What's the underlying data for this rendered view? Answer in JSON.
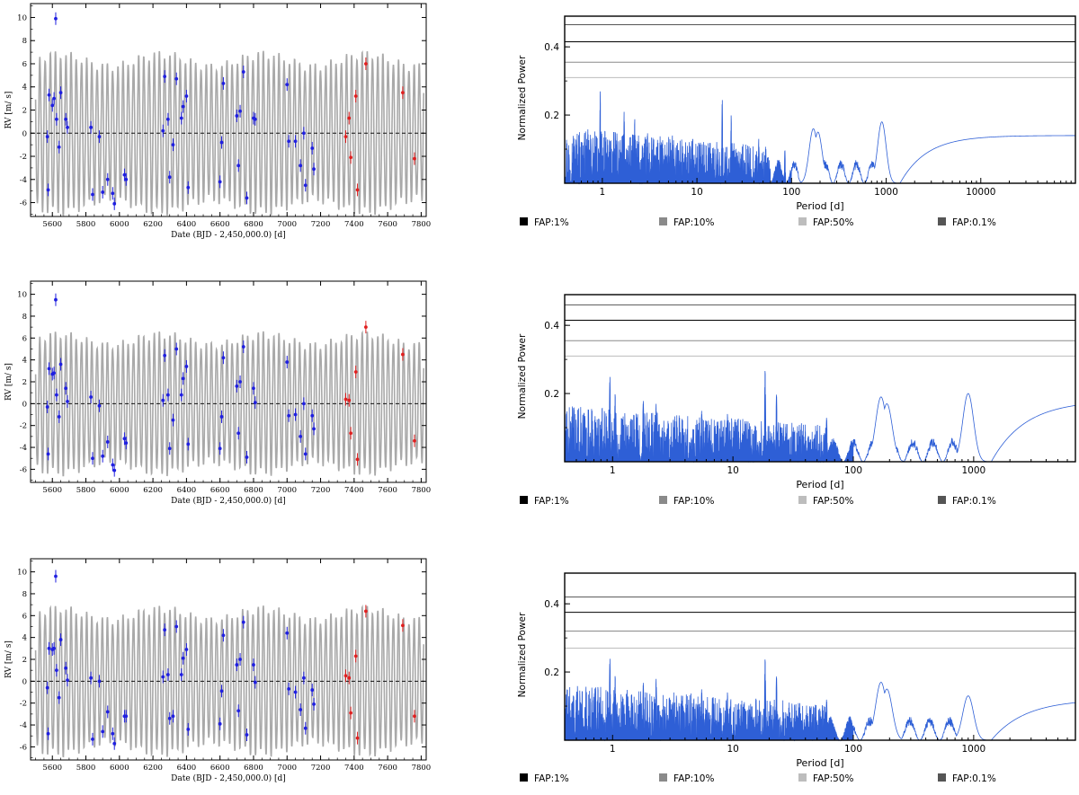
{
  "figure": {
    "rv_xlabel": "Date (BJD - 2,450,000.0) [d]",
    "rv_ylabel": "RV [m/ s]",
    "rv_xticks": [
      5600,
      5800,
      6000,
      6200,
      6400,
      6600,
      6800,
      7000,
      7200,
      7400,
      7600,
      7800
    ],
    "rv_yticks": [
      -6,
      -4,
      -2,
      0,
      2,
      4,
      6,
      8,
      10
    ],
    "pg_xlabel": "Period [d]",
    "pg_ylabel": "Normalized Power",
    "pg_yticks": [
      0.2,
      0.4
    ],
    "legend": [
      {
        "label": "FAP:1%",
        "color": "#000000"
      },
      {
        "label": "FAP:10%",
        "color": "#8a8a8a"
      },
      {
        "label": "FAP:50%",
        "color": "#bdbdbd"
      },
      {
        "label": "FAP:0.1%",
        "color": "#555555"
      }
    ],
    "colors": {
      "data_blue": "#1f1fe0",
      "data_red": "#e01f1f",
      "model_gray": "#a9a9a9",
      "periodogram": "#2e5fd6"
    }
  },
  "chart_data": [
    {
      "type": "scatter",
      "title": "",
      "xlabel": "Date (BJD - 2,450,000.0) [d]",
      "ylabel": "RV [m/ s]",
      "xlim": [
        5470,
        7830
      ],
      "ylim": [
        -7.2,
        11.2
      ],
      "model": {
        "name": "model",
        "amplitude": 6.8,
        "period_days": 31.0
      },
      "series": [
        {
          "name": "instrument-1",
          "color": "#1f1fe0",
          "points": [
            [
              5570,
              -0.3
            ],
            [
              5580,
              3.3
            ],
            [
              5575,
              -4.9
            ],
            [
              5600,
              2.4
            ],
            [
              5610,
              3.0
            ],
            [
              5620,
              9.9
            ],
            [
              5625,
              1.2
            ],
            [
              5640,
              -1.2
            ],
            [
              5650,
              3.5
            ],
            [
              5680,
              1.2
            ],
            [
              5690,
              0.5
            ],
            [
              5830,
              0.5
            ],
            [
              5840,
              -5.3
            ],
            [
              5880,
              -0.3
            ],
            [
              5900,
              -5.1
            ],
            [
              5930,
              -4.0
            ],
            [
              5960,
              -5.2
            ],
            [
              5970,
              -6.1
            ],
            [
              6030,
              -3.6
            ],
            [
              6040,
              -4.0
            ],
            [
              6260,
              0.2
            ],
            [
              6270,
              4.9
            ],
            [
              6290,
              1.2
            ],
            [
              6300,
              -3.8
            ],
            [
              6320,
              -1.0
            ],
            [
              6340,
              4.7
            ],
            [
              6370,
              1.3
            ],
            [
              6380,
              2.3
            ],
            [
              6400,
              3.2
            ],
            [
              6410,
              -4.7
            ],
            [
              6600,
              -4.2
            ],
            [
              6610,
              -0.8
            ],
            [
              6620,
              4.3
            ],
            [
              6700,
              1.5
            ],
            [
              6710,
              -2.8
            ],
            [
              6720,
              1.9
            ],
            [
              6740,
              5.3
            ],
            [
              6760,
              -5.6
            ],
            [
              6800,
              1.3
            ],
            [
              6810,
              1.2
            ],
            [
              7000,
              4.2
            ],
            [
              7010,
              -0.7
            ],
            [
              7050,
              -0.7
            ],
            [
              7080,
              -2.8
            ],
            [
              7100,
              0.0
            ],
            [
              7110,
              -4.5
            ],
            [
              7150,
              -1.3
            ],
            [
              7160,
              -3.1
            ]
          ]
        },
        {
          "name": "instrument-2",
          "color": "#e01f1f",
          "points": [
            [
              7350,
              -0.3
            ],
            [
              7370,
              1.3
            ],
            [
              7380,
              -2.1
            ],
            [
              7410,
              3.2
            ],
            [
              7420,
              -4.9
            ],
            [
              7470,
              6.0
            ],
            [
              7690,
              3.5
            ],
            [
              7760,
              -2.2
            ]
          ]
        }
      ]
    },
    {
      "type": "line",
      "title": "",
      "xlabel": "Period [d]",
      "ylabel": "Normalized Power",
      "xscale": "log",
      "xlim": [
        0.4,
        100000
      ],
      "ylim": [
        0,
        0.49
      ],
      "xticks": [
        1,
        10,
        100,
        1000,
        10000
      ],
      "fap_levels": {
        "FAP:0.1%": 0.465,
        "FAP:1%": 0.415,
        "FAP:10%": 0.355,
        "FAP:50%": 0.31
      },
      "series": [
        {
          "name": "GLS periodogram",
          "peaks": [
            [
              0.95,
              0.27
            ],
            [
              1.7,
              0.21
            ],
            [
              2.2,
              0.19
            ],
            [
              3.0,
              0.15
            ],
            [
              5.5,
              0.14
            ],
            [
              9.0,
              0.13
            ],
            [
              18.5,
              0.25
            ],
            [
              23,
              0.2
            ],
            [
              45,
              0.13
            ],
            [
              85,
              0.1
            ],
            [
              170,
              0.16
            ],
            [
              190,
              0.15
            ],
            [
              900,
              0.18
            ]
          ],
          "plateau": 0.14
        }
      ]
    },
    {
      "type": "scatter",
      "title": "",
      "xlabel": "Date (BJD - 2,450,000.0) [d]",
      "ylabel": "RV [m/ s]",
      "xlim": [
        5470,
        7830
      ],
      "ylim": [
        -7.2,
        11.2
      ],
      "model": {
        "name": "model",
        "amplitude": 6.3,
        "period_days": 31.0
      },
      "series": [
        {
          "name": "instrument-1",
          "color": "#1f1fe0",
          "points": [
            [
              5570,
              -0.3
            ],
            [
              5580,
              3.2
            ],
            [
              5575,
              -4.6
            ],
            [
              5600,
              2.7
            ],
            [
              5610,
              2.8
            ],
            [
              5620,
              9.5
            ],
            [
              5625,
              0.8
            ],
            [
              5640,
              -1.2
            ],
            [
              5650,
              3.6
            ],
            [
              5680,
              1.4
            ],
            [
              5690,
              0.2
            ],
            [
              5830,
              0.6
            ],
            [
              5840,
              -5.0
            ],
            [
              5880,
              -0.2
            ],
            [
              5900,
              -4.8
            ],
            [
              5930,
              -3.5
            ],
            [
              5960,
              -5.6
            ],
            [
              5970,
              -6.1
            ],
            [
              6030,
              -3.2
            ],
            [
              6040,
              -3.6
            ],
            [
              6260,
              0.3
            ],
            [
              6270,
              4.4
            ],
            [
              6290,
              0.8
            ],
            [
              6300,
              -4.1
            ],
            [
              6320,
              -1.5
            ],
            [
              6340,
              5.0
            ],
            [
              6370,
              0.8
            ],
            [
              6380,
              2.3
            ],
            [
              6400,
              3.4
            ],
            [
              6410,
              -3.7
            ],
            [
              6600,
              -4.1
            ],
            [
              6610,
              -1.2
            ],
            [
              6620,
              4.2
            ],
            [
              6700,
              1.6
            ],
            [
              6710,
              -2.7
            ],
            [
              6720,
              2.0
            ],
            [
              6740,
              5.2
            ],
            [
              6760,
              -4.9
            ],
            [
              6800,
              1.4
            ],
            [
              6810,
              0.1
            ],
            [
              7000,
              3.8
            ],
            [
              7010,
              -1.1
            ],
            [
              7050,
              -1.0
            ],
            [
              7080,
              -3.0
            ],
            [
              7100,
              0.0
            ],
            [
              7110,
              -4.6
            ],
            [
              7150,
              -1.1
            ],
            [
              7160,
              -2.3
            ]
          ]
        },
        {
          "name": "instrument-2",
          "color": "#e01f1f",
          "points": [
            [
              7350,
              0.4
            ],
            [
              7370,
              0.3
            ],
            [
              7380,
              -2.7
            ],
            [
              7410,
              2.9
            ],
            [
              7420,
              -5.1
            ],
            [
              7470,
              7.0
            ],
            [
              7690,
              4.5
            ],
            [
              7760,
              -3.4
            ]
          ]
        }
      ]
    },
    {
      "type": "line",
      "title": "",
      "xlabel": "Period [d]",
      "ylabel": "Normalized Power",
      "xscale": "log",
      "xlim": [
        0.4,
        7000
      ],
      "ylim": [
        0,
        0.49
      ],
      "xticks": [
        1,
        10,
        100,
        1000
      ],
      "fap_levels": {
        "FAP:0.1%": 0.46,
        "FAP:1%": 0.415,
        "FAP:10%": 0.355,
        "FAP:50%": 0.31
      },
      "series": [
        {
          "name": "GLS periodogram",
          "peaks": [
            [
              0.95,
              0.25
            ],
            [
              1.05,
              0.2
            ],
            [
              1.8,
              0.18
            ],
            [
              2.3,
              0.17
            ],
            [
              5.5,
              0.15
            ],
            [
              9.0,
              0.14
            ],
            [
              18.5,
              0.27
            ],
            [
              23,
              0.2
            ],
            [
              60,
              0.13
            ],
            [
              170,
              0.19
            ],
            [
              190,
              0.17
            ],
            [
              900,
              0.2
            ]
          ],
          "plateau": 0.18
        }
      ]
    },
    {
      "type": "scatter",
      "title": "",
      "xlabel": "Date (BJD - 2,450,000.0) [d]",
      "ylabel": "RV [m/ s]",
      "xlim": [
        5470,
        7830
      ],
      "ylim": [
        -7.2,
        11.2
      ],
      "model": {
        "name": "model",
        "amplitude": 6.6,
        "period_days": 31.0
      },
      "series": [
        {
          "name": "instrument-1",
          "color": "#1f1fe0",
          "points": [
            [
              5570,
              -0.6
            ],
            [
              5580,
              3.0
            ],
            [
              5575,
              -4.8
            ],
            [
              5600,
              2.9
            ],
            [
              5610,
              3.0
            ],
            [
              5620,
              9.6
            ],
            [
              5625,
              1.0
            ],
            [
              5640,
              -1.5
            ],
            [
              5650,
              3.8
            ],
            [
              5680,
              1.2
            ],
            [
              5690,
              0.1
            ],
            [
              5830,
              0.3
            ],
            [
              5840,
              -5.3
            ],
            [
              5880,
              0.0
            ],
            [
              5900,
              -4.6
            ],
            [
              5930,
              -2.8
            ],
            [
              5960,
              -4.8
            ],
            [
              5970,
              -5.7
            ],
            [
              6030,
              -3.2
            ],
            [
              6040,
              -3.2
            ],
            [
              6260,
              0.4
            ],
            [
              6270,
              4.7
            ],
            [
              6290,
              0.6
            ],
            [
              6300,
              -3.4
            ],
            [
              6320,
              -3.2
            ],
            [
              6340,
              5.0
            ],
            [
              6370,
              0.6
            ],
            [
              6380,
              2.1
            ],
            [
              6400,
              2.9
            ],
            [
              6410,
              -4.4
            ],
            [
              6600,
              -3.9
            ],
            [
              6610,
              -0.9
            ],
            [
              6620,
              4.2
            ],
            [
              6700,
              1.5
            ],
            [
              6710,
              -2.7
            ],
            [
              6720,
              2.0
            ],
            [
              6740,
              5.4
            ],
            [
              6760,
              -4.9
            ],
            [
              6800,
              1.5
            ],
            [
              6810,
              -0.1
            ],
            [
              7000,
              4.4
            ],
            [
              7010,
              -0.7
            ],
            [
              7050,
              -1.0
            ],
            [
              7080,
              -2.6
            ],
            [
              7100,
              0.3
            ],
            [
              7110,
              -4.3
            ],
            [
              7150,
              -0.8
            ],
            [
              7160,
              -2.1
            ]
          ]
        },
        {
          "name": "instrument-2",
          "color": "#e01f1f",
          "points": [
            [
              7350,
              0.5
            ],
            [
              7370,
              0.3
            ],
            [
              7380,
              -2.9
            ],
            [
              7410,
              2.3
            ],
            [
              7420,
              -5.2
            ],
            [
              7470,
              6.4
            ],
            [
              7690,
              5.1
            ],
            [
              7760,
              -3.2
            ]
          ]
        }
      ]
    },
    {
      "type": "line",
      "title": "",
      "xlabel": "Period [d]",
      "ylabel": "Normalized Power",
      "xscale": "log",
      "xlim": [
        0.4,
        7000
      ],
      "ylim": [
        0,
        0.49
      ],
      "xticks": [
        1,
        10,
        100,
        1000
      ],
      "fap_levels": {
        "FAP:0.1%": 0.42,
        "FAP:1%": 0.375,
        "FAP:10%": 0.32,
        "FAP:50%": 0.27
      },
      "series": [
        {
          "name": "GLS periodogram",
          "peaks": [
            [
              0.95,
              0.24
            ],
            [
              1.05,
              0.19
            ],
            [
              1.8,
              0.17
            ],
            [
              2.3,
              0.18
            ],
            [
              5.5,
              0.15
            ],
            [
              9.0,
              0.14
            ],
            [
              18.5,
              0.24
            ],
            [
              23,
              0.19
            ],
            [
              60,
              0.12
            ],
            [
              170,
              0.17
            ],
            [
              190,
              0.15
            ],
            [
              900,
              0.13
            ]
          ],
          "plateau": 0.12
        }
      ]
    }
  ]
}
